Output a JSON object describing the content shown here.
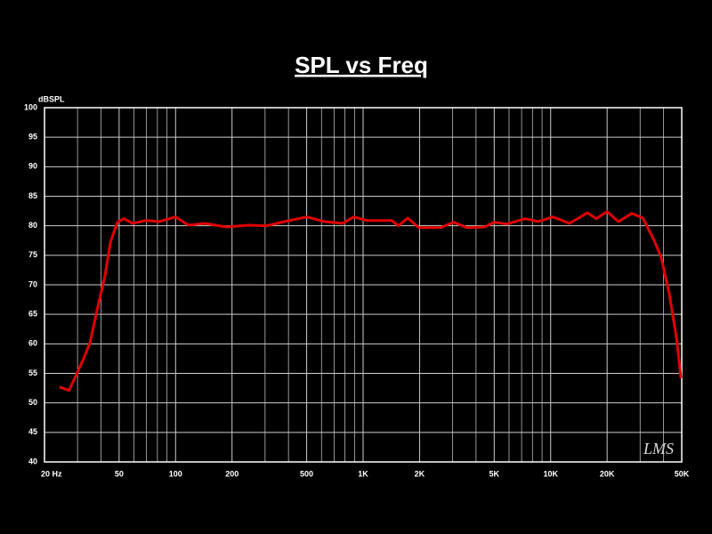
{
  "chart_data": {
    "type": "line",
    "title": "SPL vs Freq",
    "y_label": "dBSPL",
    "watermark": "LMS",
    "x_scale": "log",
    "grid": true,
    "xlim": [
      20,
      50000
    ],
    "ylim": [
      40,
      100
    ],
    "xticks": [
      {
        "value": 20,
        "label": "20  Hz"
      },
      50,
      100,
      200,
      500,
      {
        "value": 1000,
        "label": "1K"
      },
      {
        "value": 2000,
        "label": "2K"
      },
      {
        "value": 5000,
        "label": "5K"
      },
      {
        "value": 10000,
        "label": "10K"
      },
      {
        "value": 20000,
        "label": "20K"
      },
      {
        "value": 50000,
        "label": "50K"
      }
    ],
    "xminorticks": [
      30,
      40,
      60,
      70,
      80,
      90,
      300,
      400,
      600,
      700,
      800,
      900,
      3000,
      4000,
      6000,
      7000,
      8000,
      9000,
      30000,
      40000
    ],
    "yticks": [
      40,
      45,
      50,
      55,
      60,
      65,
      70,
      75,
      80,
      85,
      90,
      95,
      100
    ],
    "x": [
      24,
      27,
      29,
      32,
      35,
      38,
      42,
      45,
      49,
      53,
      59,
      70,
      82,
      100,
      117,
      143,
      187,
      246,
      306,
      381,
      500,
      622,
      778,
      892,
      1044,
      1420,
      1540,
      1730,
      1980,
      2590,
      3030,
      3570,
      4460,
      4980,
      5850,
      7290,
      8580,
      10300,
      12600,
      15700,
      17500,
      20000,
      23000,
      27100,
      31000,
      35500,
      38800,
      42900,
      46900,
      49500
    ],
    "series": [
      {
        "name": "SPL",
        "color": "#e00000",
        "values": [
          52.7,
          52.1,
          54.2,
          57.2,
          60.2,
          65.5,
          71.5,
          77.3,
          80.6,
          81.2,
          80.4,
          80.9,
          80.7,
          81.5,
          80.1,
          80.4,
          79.8,
          80.1,
          80.0,
          80.7,
          81.5,
          80.7,
          80.4,
          81.5,
          80.9,
          80.9,
          80.0,
          81.3,
          79.7,
          79.7,
          80.6,
          79.7,
          79.8,
          80.6,
          80.3,
          81.2,
          80.7,
          81.5,
          80.4,
          82.2,
          81.2,
          82.4,
          80.7,
          82.1,
          81.3,
          77.6,
          74.7,
          68.5,
          61.0,
          54.2
        ]
      }
    ]
  }
}
